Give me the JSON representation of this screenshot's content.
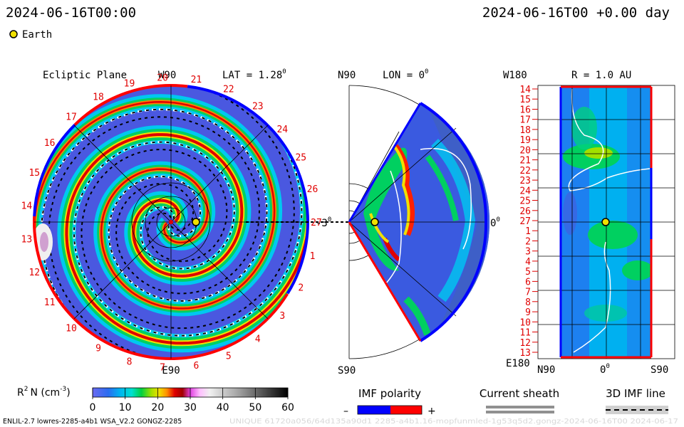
{
  "header": {
    "datetime_left": "2024-06-16T00:00",
    "datetime_right": "2024-06-16T00 +0.00 day",
    "legend_earth": "Earth"
  },
  "panels": {
    "ecliptic": {
      "title": "Ecliptic Plane",
      "top_label": "W90",
      "bottom_label": "E90",
      "lat_label": "LAT = 1.28",
      "lat_sup": "0"
    },
    "meridional": {
      "top_label": "N90",
      "bottom_label": "S90",
      "lon_label": "LON = 0",
      "lon_sup": "0",
      "left_label": "-3",
      "left_sup": "0",
      "right_label": "0",
      "right_sup": "0"
    },
    "synoptic": {
      "r_label": "R = 1.0 AU",
      "top_label": "W180",
      "bottom_label": "E180",
      "x_left": "N90",
      "x_mid": "0",
      "x_mid_sup": "0",
      "x_right": "S90",
      "carrington_days": [
        "14",
        "15",
        "16",
        "17",
        "18",
        "19",
        "20",
        "21",
        "22",
        "23",
        "24",
        "25",
        "26",
        "27",
        "1",
        "2",
        "3",
        "4",
        "5",
        "6",
        "7",
        "8",
        "9",
        "10",
        "11",
        "12",
        "13"
      ]
    }
  },
  "chart_data": {
    "type": "heatmap",
    "quantity_label": "R",
    "quantity_sup": "2",
    "quantity_label_rest": "N (cm",
    "quantity_unit_sup": "-3",
    "quantity_close": ")",
    "colorbar_range": [
      0,
      60
    ],
    "colorbar_ticks": [
      "0",
      "10",
      "20",
      "30",
      "40",
      "50",
      "60"
    ],
    "colors": {
      "low": "#4040e0",
      "blue": "#2a6cf0",
      "cyan": "#00c8f0",
      "green": "#00d060",
      "yellow": "#f0e000",
      "orange": "#ff8000",
      "red": "#e00000",
      "negative_polarity": "#0000ff",
      "positive_polarity": "#ff0000",
      "earth": "#f0e000"
    },
    "ecliptic_day_labels": [
      "20",
      "21",
      "22",
      "23",
      "24",
      "25",
      "26",
      "27",
      "1",
      "2",
      "3",
      "4",
      "5",
      "6",
      "7",
      "8",
      "9",
      "10",
      "11",
      "12",
      "13",
      "14",
      "15",
      "16",
      "17",
      "18",
      "19"
    ]
  },
  "footer": {
    "legend_imf_polarity": "IMF polarity",
    "legend_minus": "–",
    "legend_plus": "+",
    "legend_current_sheath": "Current sheath",
    "legend_3d_imf": "3D IMF line",
    "model_info": "ENLIL-2.7 lowres-2285-a4b1 WSA_V2.2 GONGZ-2285",
    "model_info_faint": "UNIQUE 61720a056/64d135a90d1 2285-a4b1.16-mopfunmled-1g53q5d2.gongz-2024-06-16T00   2024-06-17"
  }
}
